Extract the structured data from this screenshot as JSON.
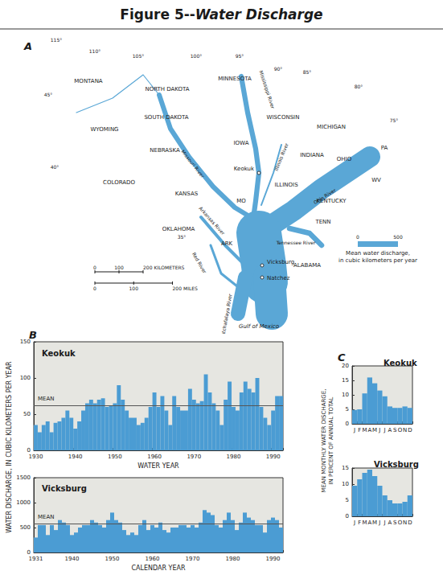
{
  "figure_title": "Figure 5--Water Discharge",
  "panels": {
    "A": {
      "label": "A"
    },
    "B": {
      "label": "B",
      "y_label": "WATER DISCHARGE, IN CUBIC KILOMETERS PER YEAR"
    },
    "C": {
      "label": "C",
      "y_label": "MEAN MONTHLY WATER DISCHARGE, IN PERCENT OF ANNUAL TOTAL"
    }
  },
  "map": {
    "color": "#5aa7d6",
    "states": [
      "MONTANA",
      "NORTH DAKOTA",
      "MINNESOTA",
      "SOUTH DAKOTA",
      "WISCONSIN",
      "MICHIGAN",
      "WYOMING",
      "NEBRASKA",
      "IOWA",
      "ILLINOIS",
      "INDIANA",
      "OHIO",
      "PA",
      "COLORADO",
      "KANSAS",
      "MO",
      "KENTUCKY",
      "WV",
      "TENN",
      "OKLAHOMA",
      "ARK",
      "ALABAMA"
    ],
    "cities": [
      "Keokuk",
      "Vicksburg",
      "Natchez"
    ],
    "water_body": "Gulf of Mexico",
    "longitudes": [
      "115°",
      "110°",
      "105°",
      "100°",
      "95°",
      "90°",
      "85°",
      "80°",
      "75°"
    ],
    "latitudes": [
      "45°",
      "40°",
      "35°"
    ],
    "rivers": [
      {
        "name": null,
        "discharge": 10
      },
      {
        "name": "Missouri River",
        "discharge": 60
      },
      {
        "name": "Mississippi River",
        "discharge": 62
      },
      {
        "name": "Illinois River",
        "discharge": 20
      },
      {
        "name": "Ohio River",
        "discharge": 260
      },
      {
        "name": "Tennessee River",
        "discharge": 65
      },
      {
        "name": null,
        "discharge": 560
      },
      {
        "name": "Arkansas River",
        "discharge": 40
      },
      {
        "name": "Red River",
        "discharge": 30
      },
      {
        "name": "Atchafalaya River",
        "discharge": 180
      },
      {
        "name": null,
        "discharge": 400
      }
    ],
    "scale_bars": [
      {
        "ticks": [
          0,
          100,
          200
        ],
        "unit": "KILOMETERS"
      },
      {
        "ticks": [
          0,
          100,
          200
        ],
        "unit": "MILES"
      }
    ],
    "discharge_legend": {
      "ticks": [
        0,
        500
      ],
      "label": "Mean water discharge, in cubic kilometers per year"
    }
  },
  "chart_data": [
    {
      "type": "bar",
      "title": "Keokuk",
      "x_label": "WATER YEAR",
      "color": "#4b9cd3",
      "grid": false,
      "categories": [
        1930,
        null,
        null,
        null,
        null,
        null,
        null,
        null,
        null,
        null,
        1940,
        null,
        null,
        null,
        null,
        null,
        null,
        null,
        null,
        null,
        1950,
        null,
        null,
        null,
        null,
        null,
        null,
        null,
        null,
        null,
        1960,
        null,
        null,
        null,
        null,
        null,
        null,
        null,
        null,
        null,
        1970,
        null,
        null,
        null,
        null,
        null,
        null,
        null,
        null,
        null,
        1980,
        null,
        null,
        null,
        null,
        null,
        null,
        null,
        null,
        null,
        1990,
        null,
        null
      ],
      "values": [
        35,
        25,
        35,
        40,
        25,
        38,
        40,
        45,
        55,
        45,
        30,
        40,
        55,
        65,
        70,
        65,
        70,
        72,
        60,
        62,
        65,
        90,
        70,
        55,
        45,
        45,
        35,
        38,
        45,
        60,
        80,
        60,
        75,
        55,
        35,
        75,
        60,
        55,
        55,
        85,
        70,
        65,
        68,
        105,
        80,
        65,
        55,
        35,
        70,
        95,
        60,
        55,
        80,
        95,
        85,
        80,
        100,
        60,
        45,
        35,
        55,
        75,
        75
      ],
      "mean": {
        "label": "MEAN",
        "value": 62
      },
      "ylim": [
        0,
        150
      ],
      "yticks": [
        0,
        50,
        100,
        150
      ]
    },
    {
      "type": "bar",
      "title": "Vicksburg",
      "x_label": "CALENDAR YEAR",
      "color": "#4b9cd3",
      "grid": false,
      "categories": [
        1931,
        null,
        null,
        null,
        null,
        null,
        null,
        null,
        null,
        1940,
        null,
        null,
        null,
        null,
        null,
        null,
        null,
        null,
        null,
        1950,
        null,
        null,
        null,
        null,
        null,
        null,
        null,
        null,
        null,
        1960,
        null,
        null,
        null,
        null,
        null,
        null,
        null,
        null,
        null,
        1970,
        null,
        null,
        null,
        null,
        null,
        null,
        null,
        null,
        null,
        1980,
        null,
        null,
        null,
        null,
        null,
        null,
        null,
        null,
        null,
        1990,
        null,
        null
      ],
      "values": [
        300,
        550,
        550,
        350,
        550,
        450,
        650,
        600,
        550,
        350,
        400,
        500,
        550,
        550,
        650,
        600,
        550,
        500,
        650,
        800,
        650,
        600,
        450,
        350,
        400,
        350,
        550,
        650,
        450,
        550,
        500,
        600,
        450,
        400,
        500,
        500,
        550,
        550,
        500,
        550,
        500,
        600,
        850,
        800,
        750,
        550,
        500,
        650,
        800,
        650,
        450,
        600,
        800,
        700,
        650,
        550,
        550,
        400,
        650,
        700,
        650,
        500
      ],
      "mean": {
        "label": "MEAN",
        "value": 580
      },
      "ylim": [
        0,
        1500
      ],
      "yticks": [
        0,
        500,
        1000,
        1500
      ]
    },
    {
      "type": "bar",
      "title": "Keokuk",
      "color": "#4b9cd3",
      "grid": false,
      "categories": [
        "J",
        "F",
        "M",
        "A",
        "M",
        "J",
        "J",
        "A",
        "S",
        "O",
        "N",
        "D"
      ],
      "values": [
        4.8,
        5,
        10.5,
        16,
        14,
        11.5,
        9.5,
        6,
        5.5,
        5.5,
        6,
        5.5
      ],
      "ylim": [
        0,
        20
      ],
      "yticks": [
        0,
        5,
        10,
        15,
        20
      ]
    },
    {
      "type": "bar",
      "title": "Vicksburg",
      "color": "#4b9cd3",
      "grid": false,
      "categories": [
        "J",
        "F",
        "M",
        "A",
        "M",
        "J",
        "J",
        "A",
        "S",
        "O",
        "N",
        "D"
      ],
      "values": [
        9.5,
        11.5,
        13.5,
        14.5,
        12.5,
        9.5,
        6.5,
        5,
        4,
        4,
        4.5,
        6.5
      ],
      "ylim": [
        0,
        15
      ],
      "yticks": [
        0,
        5,
        10,
        15
      ]
    }
  ]
}
